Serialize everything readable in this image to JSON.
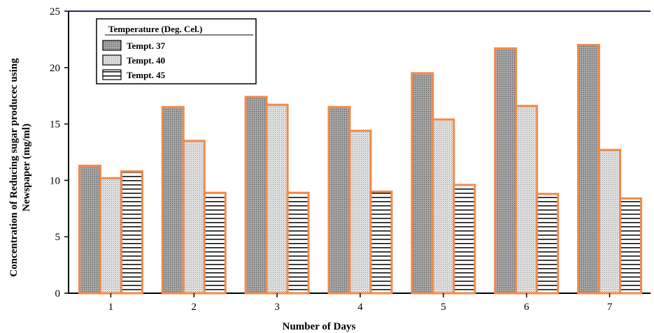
{
  "chart_data": {
    "type": "bar",
    "xlabel": "Number of Days",
    "ylabel_lines": [
      "Concentration of Reducing sugar producec using",
      "Newspaper (mg/ml)"
    ],
    "categories": [
      "1",
      "2",
      "3",
      "4",
      "5",
      "6",
      "7"
    ],
    "ylim": [
      0,
      25
    ],
    "yticks": [
      "0",
      "5",
      "10",
      "15",
      "20",
      "25"
    ],
    "grid": false,
    "legend": {
      "title": "Temperature (Deg. Cel.)",
      "placement": "top-left"
    },
    "series": [
      {
        "name": "Tempt. 37",
        "pattern": "dots-dark",
        "values": [
          11.3,
          16.5,
          17.4,
          16.5,
          19.5,
          21.7,
          22.0
        ]
      },
      {
        "name": "Tempt. 40",
        "pattern": "dots-light",
        "values": [
          10.2,
          13.5,
          16.7,
          14.4,
          15.4,
          16.6,
          12.7
        ]
      },
      {
        "name": "Tempt. 45",
        "pattern": "hlines",
        "values": [
          10.8,
          8.9,
          8.9,
          9.0,
          9.6,
          8.8,
          8.4
        ]
      }
    ],
    "colors": {
      "bar_outline": "#f08a4b",
      "axis": "#000000",
      "top_border": "#1f2a66"
    }
  }
}
